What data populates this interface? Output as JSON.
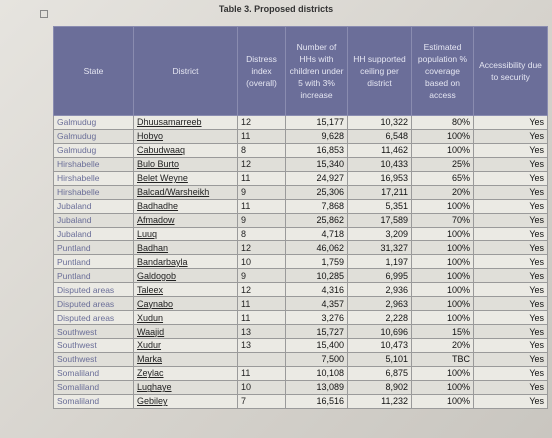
{
  "caption": "Table 3. Proposed districts",
  "headers": {
    "state": "State",
    "district": "District",
    "distress": "Distress index (overall)",
    "hhs": "Number of HHs with children under 5 with 3% increase",
    "ceiling": "HH supported ceiling per district",
    "coverage": "Estimated population % coverage based on access",
    "access": "Accessibility due to security"
  },
  "rows": [
    [
      "Galmudug",
      "Dhuusamarreeb",
      "12",
      "15,177",
      "10,322",
      "80%",
      "Yes"
    ],
    [
      "Galmudug",
      "Hobyo",
      "11",
      "9,628",
      "6,548",
      "100%",
      "Yes"
    ],
    [
      "Galmudug",
      "Cabudwaaq",
      "8",
      "16,853",
      "11,462",
      "100%",
      "Yes"
    ],
    [
      "Hirshabelle",
      "Bulo Burto",
      "12",
      "15,340",
      "10,433",
      "25%",
      "Yes"
    ],
    [
      "Hirshabelle",
      "Belet Weyne",
      "11",
      "24,927",
      "16,953",
      "65%",
      "Yes"
    ],
    [
      "Hirshabelle",
      "Balcad/Warsheikh",
      "9",
      "25,306",
      "17,211",
      "20%",
      "Yes"
    ],
    [
      "Jubaland",
      "Badhadhe",
      "11",
      "7,868",
      "5,351",
      "100%",
      "Yes"
    ],
    [
      "Jubaland",
      "Afmadow",
      "9",
      "25,862",
      "17,589",
      "70%",
      "Yes"
    ],
    [
      "Jubaland",
      "Luuq",
      "8",
      "4,718",
      "3,209",
      "100%",
      "Yes"
    ],
    [
      "Puntland",
      "Badhan",
      "12",
      "46,062",
      "31,327",
      "100%",
      "Yes"
    ],
    [
      "Puntland",
      "Bandarbayla",
      "10",
      "1,759",
      "1,197",
      "100%",
      "Yes"
    ],
    [
      "Puntland",
      "Galdogob",
      "9",
      "10,285",
      "6,995",
      "100%",
      "Yes"
    ],
    [
      "Disputed areas",
      "Taleex",
      "12",
      "4,316",
      "2,936",
      "100%",
      "Yes"
    ],
    [
      "Disputed areas",
      "Caynabo",
      "11",
      "4,357",
      "2,963",
      "100%",
      "Yes"
    ],
    [
      "Disputed areas",
      "Xudun",
      "11",
      "3,276",
      "2,228",
      "100%",
      "Yes"
    ],
    [
      "Southwest",
      "Waajid",
      "13",
      "15,727",
      "10,696",
      "15%",
      "Yes"
    ],
    [
      "Southwest",
      "Xudur",
      "13",
      "15,400",
      "10,473",
      "20%",
      "Yes"
    ],
    [
      "Southwest",
      "Marka",
      "",
      "7,500",
      "5,101",
      "TBC",
      "Yes"
    ],
    [
      "Somaliland",
      "Zeylac",
      "11",
      "10,108",
      "6,875",
      "100%",
      "Yes"
    ],
    [
      "Somaliland",
      "Lughaye",
      "10",
      "13,089",
      "8,902",
      "100%",
      "Yes"
    ],
    [
      "Somaliland",
      "Gebiley",
      "7",
      "16,516",
      "11,232",
      "100%",
      "Yes"
    ]
  ]
}
